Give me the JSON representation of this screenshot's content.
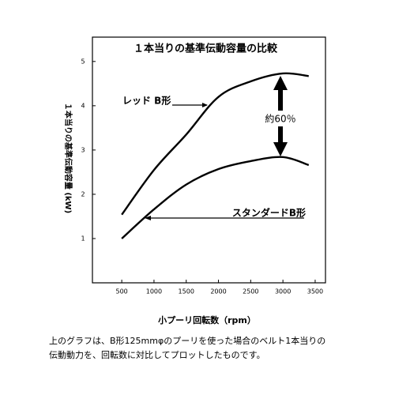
{
  "chart_data": {
    "type": "line",
    "title": "１本当りの基準伝動容量の比較",
    "x_label": "小プーリ回転数（rpm）",
    "y_label": "１本当りの基準伝動容量 (kW)",
    "x": [
      500,
      1000,
      1500,
      2000,
      2500,
      3000,
      3400
    ],
    "series": [
      {
        "name": "レッド B形",
        "color": "#000000",
        "values": [
          1.54,
          2.55,
          3.35,
          4.2,
          4.55,
          4.73,
          4.67
        ]
      },
      {
        "name": "スタンダードB形",
        "color": "#000000",
        "values": [
          1.0,
          1.66,
          2.22,
          2.57,
          2.75,
          2.84,
          2.66
        ]
      }
    ],
    "annotation": "約60％",
    "xlim": [
      45,
      3660
    ],
    "xticks": [
      500,
      1000,
      1500,
      2000,
      2500,
      3000,
      3500
    ],
    "ylim": [
      0,
      5.55
    ],
    "yticks": [
      1,
      2,
      3,
      4,
      5
    ],
    "caption": [
      "上のグラフは、B形125mmφのプーリを使った場合のベルト1本当りの",
      "伝動動力を、回転数に対比してプロットしたものです。"
    ]
  }
}
